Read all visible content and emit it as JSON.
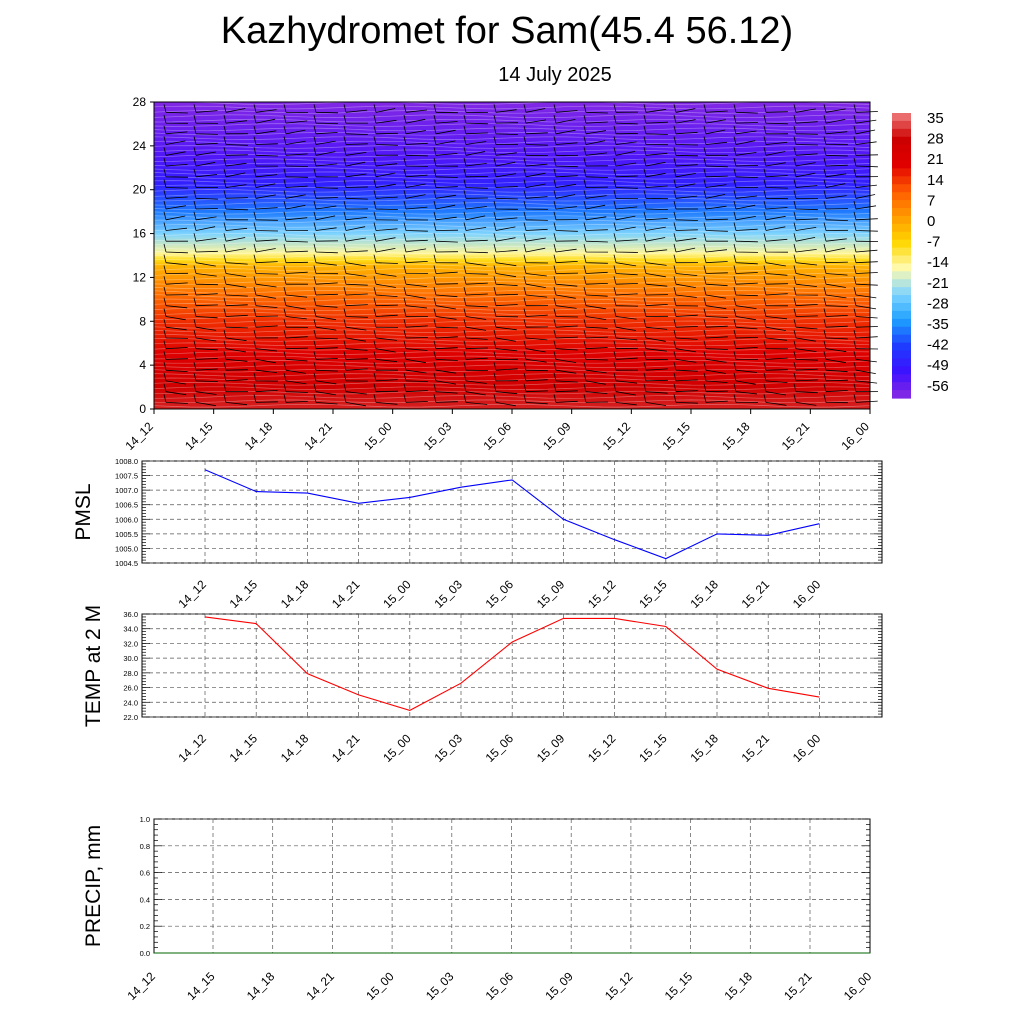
{
  "title": "Kazhydromet for Sam(45.4 56.12)",
  "subtitle": "14 July 2025",
  "chart_data": [
    {
      "type": "heatmap",
      "name": "vertical temperature cross-section",
      "x_ticks": [
        "14_12",
        "14_15",
        "14_18",
        "14_21",
        "15_00",
        "15_03",
        "15_06",
        "15_09",
        "15_12",
        "15_15",
        "15_18",
        "15_21",
        "16_00"
      ],
      "y_ticks": [
        "0",
        "4",
        "8",
        "12",
        "16",
        "20",
        "24",
        "28"
      ],
      "ylim": [
        0,
        28
      ],
      "colorbar_labels": [
        "35",
        "28",
        "21",
        "14",
        "7",
        "0",
        "-7",
        "-14",
        "-21",
        "-28",
        "-35",
        "-42",
        "-49",
        "-56"
      ],
      "colorbar_range": [
        -63,
        42
      ],
      "colors": [
        "#8a2be2",
        "#3c10ff",
        "#1e3cff",
        "#1ea0ff",
        "#7fd4ff",
        "#fffbb0",
        "#ffd700",
        "#ff9a00",
        "#ff5a00",
        "#e00000",
        "#cc0000",
        "#f08080"
      ],
      "temperature_profile": [
        {
          "level": 0,
          "temp": 35
        },
        {
          "level": 2,
          "temp": 30
        },
        {
          "level": 5,
          "temp": 24
        },
        {
          "level": 8,
          "temp": 18
        },
        {
          "level": 10.5,
          "temp": 10
        },
        {
          "level": 13,
          "temp": 0
        },
        {
          "level": 13.6,
          "temp": -7
        },
        {
          "level": 14.2,
          "temp": -14
        },
        {
          "level": 16,
          "temp": -25
        },
        {
          "level": 18,
          "temp": -38
        },
        {
          "level": 20.5,
          "temp": -50
        },
        {
          "level": 23,
          "temp": -56
        },
        {
          "level": 28,
          "temp": -62
        }
      ]
    },
    {
      "type": "line",
      "ylabel": "PMSL",
      "categories": [
        "14_12",
        "14_15",
        "14_18",
        "14_21",
        "15_00",
        "15_03",
        "15_06",
        "15_09",
        "15_12",
        "15_15",
        "15_18",
        "15_21",
        "16_00"
      ],
      "values": [
        1007.7,
        1006.95,
        1006.9,
        1006.55,
        1006.75,
        1007.1,
        1007.35,
        1006.0,
        1005.3,
        1004.65,
        1005.5,
        1005.45,
        1005.85
      ],
      "ylim": [
        1004.5,
        1008.0
      ],
      "yticks": [
        "1004.5",
        "1005.0",
        "1005.5",
        "1006.0",
        "1006.5",
        "1007.0",
        "1007.5",
        "1008.0"
      ],
      "color": "#0000ff"
    },
    {
      "type": "line",
      "ylabel": "TEMP at 2 M",
      "categories": [
        "14_12",
        "14_15",
        "14_18",
        "14_21",
        "15_00",
        "15_03",
        "15_06",
        "15_09",
        "15_12",
        "15_15",
        "15_18",
        "15_21",
        "16_00"
      ],
      "values": [
        35.6,
        34.7,
        27.9,
        25.0,
        22.9,
        26.6,
        32.2,
        35.4,
        35.4,
        34.3,
        28.5,
        25.9,
        24.7
      ],
      "ylim": [
        22.0,
        36.0
      ],
      "yticks": [
        "22.0",
        "24.0",
        "26.0",
        "28.0",
        "30.0",
        "32.0",
        "34.0",
        "36.0"
      ],
      "color": "#ff0000"
    },
    {
      "type": "line",
      "ylabel": "PRECIP, mm",
      "categories": [
        "14_12",
        "14_15",
        "14_18",
        "14_21",
        "15_00",
        "15_03",
        "15_06",
        "15_09",
        "15_12",
        "15_15",
        "15_18",
        "15_21",
        "16_00"
      ],
      "values": [
        0,
        0,
        0,
        0,
        0,
        0,
        0,
        0,
        0,
        0,
        0,
        0,
        0
      ],
      "ylim": [
        0.0,
        1.0
      ],
      "yticks": [
        "0.0",
        "0.2",
        "0.4",
        "0.6",
        "0.8",
        "1.0"
      ],
      "color": "#006400"
    }
  ]
}
